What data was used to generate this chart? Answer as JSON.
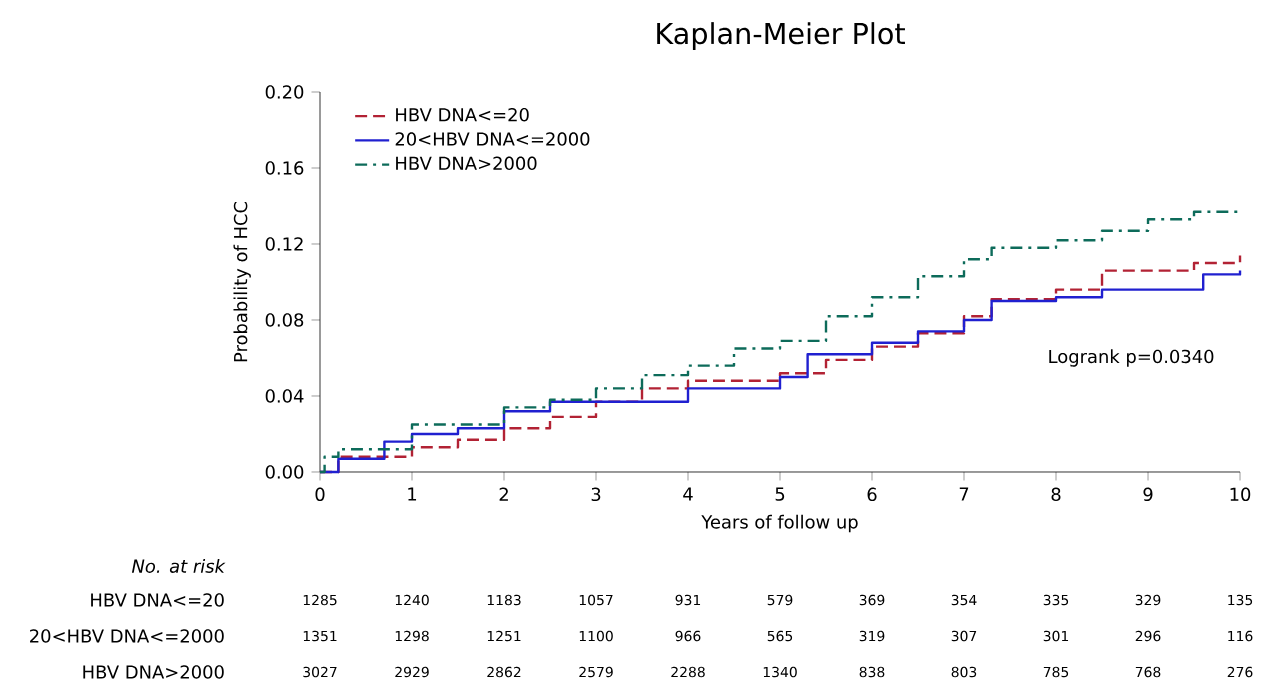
{
  "chart_data": {
    "type": "step",
    "title": "Kaplan-Meier Plot",
    "xlabel": "Years of follow up",
    "ylabel": "Probability of HCC",
    "xlim": [
      0,
      10
    ],
    "ylim": [
      0,
      0.2
    ],
    "xticks": [
      0,
      1,
      2,
      3,
      4,
      5,
      6,
      7,
      8,
      9,
      10
    ],
    "yticks": [
      {
        "value": 0,
        "label": "0.00"
      },
      {
        "value": 0.04,
        "label": "0.04"
      },
      {
        "value": 0.08,
        "label": "0.08"
      },
      {
        "value": 0.12,
        "label": "0.12"
      },
      {
        "value": 0.16,
        "label": "0.16"
      },
      {
        "value": 0.2,
        "label": "0.20"
      }
    ],
    "legend": "top left",
    "grid": false,
    "marker": "none",
    "series": [
      {
        "name": "HBV DNA<=20",
        "color": "#b22234",
        "line_style": "dashed",
        "x": [
          0,
          0.2,
          1,
          1.5,
          2,
          2.5,
          3,
          3.5,
          4,
          5,
          5.5,
          6,
          6.5,
          7,
          7.3,
          8,
          8.5,
          9.5,
          10
        ],
        "values": [
          0,
          0.008,
          0.013,
          0.017,
          0.023,
          0.029,
          0.037,
          0.044,
          0.048,
          0.052,
          0.059,
          0.066,
          0.073,
          0.082,
          0.091,
          0.096,
          0.106,
          0.11,
          0.114
        ]
      },
      {
        "name": "20<HBV DNA<=2000",
        "color": "#2020d0",
        "line_style": "solid",
        "x": [
          0,
          0.2,
          0.7,
          1,
          1.5,
          2,
          2.5,
          3.5,
          4,
          5,
          5.3,
          6,
          6.5,
          7,
          7.3,
          8,
          8.5,
          9.6,
          10
        ],
        "values": [
          0,
          0.007,
          0.016,
          0.02,
          0.023,
          0.032,
          0.037,
          0.037,
          0.044,
          0.05,
          0.062,
          0.068,
          0.074,
          0.08,
          0.09,
          0.092,
          0.096,
          0.104,
          0.106
        ]
      },
      {
        "name": "HBV DNA>2000",
        "color": "#0d6b5a",
        "line_style": "dashdot",
        "x": [
          0,
          0.05,
          0.2,
          1,
          2,
          2.5,
          3,
          3.5,
          4,
          4.5,
          5,
          5.5,
          6,
          6.5,
          7,
          7.3,
          8,
          8.5,
          9,
          9.5,
          10
        ],
        "values": [
          0,
          0.008,
          0.012,
          0.025,
          0.034,
          0.038,
          0.044,
          0.051,
          0.056,
          0.065,
          0.069,
          0.082,
          0.092,
          0.103,
          0.112,
          0.118,
          0.122,
          0.127,
          0.133,
          0.137,
          0.137
        ]
      }
    ],
    "annotations": [
      "Logrank p=0.0340",
      "No. at risk",
      "1285",
      "1240",
      "1183",
      "1057",
      "931",
      "579",
      "369",
      "354",
      "335",
      "329",
      "135",
      "1351",
      "1298",
      "1251",
      "1100",
      "966",
      "565",
      "319",
      "307",
      "301",
      "296",
      "116",
      "3027",
      "2929",
      "2862",
      "2579",
      "2288",
      "1340",
      "838",
      "803",
      "785",
      "768",
      "276"
    ]
  }
}
